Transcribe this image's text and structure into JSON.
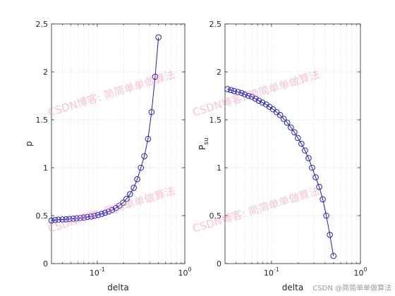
{
  "colors": {
    "series": "#1f1fbf",
    "axes": "#262626",
    "grid": "#d4d4d4",
    "watermark": "#ff8fb3"
  },
  "watermark_text": "CSDN博客: 简简单单做算法",
  "credit_text": "CSDN @简简单单做算法",
  "chart_data": [
    {
      "type": "line",
      "marker": "circle",
      "xscale": "log",
      "xlim": [
        0.03,
        1
      ],
      "ylim": [
        0,
        2.5
      ],
      "grid": true,
      "xlabel": "delta",
      "ylabel": "p",
      "ylabel_sub": "",
      "xticks": [
        {
          "value": 0.1,
          "base": "10",
          "exp": "-1"
        },
        {
          "value": 1,
          "base": "10",
          "exp": "0"
        }
      ],
      "yticks": [
        "0",
        "0.5",
        "1",
        "1.5",
        "2",
        "2.5"
      ],
      "x": [
        0.03,
        0.033,
        0.036,
        0.04,
        0.044,
        0.048,
        0.053,
        0.058,
        0.064,
        0.07,
        0.077,
        0.085,
        0.093,
        0.102,
        0.112,
        0.123,
        0.135,
        0.148,
        0.163,
        0.179,
        0.197,
        0.216,
        0.237,
        0.261,
        0.286,
        0.315,
        0.345,
        0.38,
        0.417,
        0.458,
        0.5
      ],
      "y": [
        0.45,
        0.455,
        0.458,
        0.46,
        0.462,
        0.465,
        0.468,
        0.472,
        0.476,
        0.48,
        0.486,
        0.492,
        0.5,
        0.508,
        0.518,
        0.53,
        0.543,
        0.56,
        0.58,
        0.605,
        0.635,
        0.675,
        0.725,
        0.79,
        0.88,
        1.0,
        1.12,
        1.3,
        1.58,
        1.95,
        2.36
      ]
    },
    {
      "type": "line",
      "marker": "circle",
      "xscale": "log",
      "xlim": [
        0.03,
        1
      ],
      "ylim": [
        0,
        2.5
      ],
      "grid": true,
      "xlabel": "delta",
      "ylabel": "P",
      "ylabel_sub": "su",
      "xticks": [
        {
          "value": 0.1,
          "base": "10",
          "exp": "-1"
        },
        {
          "value": 1,
          "base": "10",
          "exp": "0"
        }
      ],
      "yticks": [
        "0",
        "0.5",
        "1",
        "1.5",
        "2",
        "2.5"
      ],
      "x": [
        0.032,
        0.035,
        0.038,
        0.042,
        0.046,
        0.05,
        0.055,
        0.06,
        0.066,
        0.072,
        0.079,
        0.087,
        0.095,
        0.104,
        0.114,
        0.125,
        0.137,
        0.15,
        0.165,
        0.181,
        0.198,
        0.217,
        0.238,
        0.261,
        0.286,
        0.314,
        0.344,
        0.377,
        0.413,
        0.453,
        0.497
      ],
      "y": [
        1.82,
        1.81,
        1.8,
        1.79,
        1.78,
        1.765,
        1.75,
        1.74,
        1.72,
        1.7,
        1.68,
        1.66,
        1.635,
        1.61,
        1.58,
        1.55,
        1.51,
        1.47,
        1.42,
        1.37,
        1.31,
        1.25,
        1.18,
        1.1,
        1.0,
        0.9,
        0.8,
        0.67,
        0.5,
        0.3,
        0.08
      ]
    }
  ]
}
